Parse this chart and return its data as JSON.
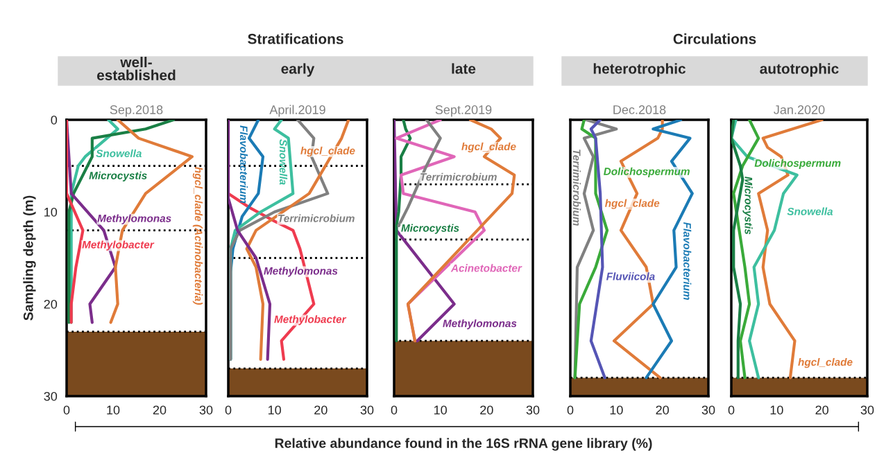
{
  "chart_data": [
    {
      "type": "line",
      "title": "well-\nestablished",
      "subtitle": "Sep.2018",
      "ylabel": "Sampling depth (m)",
      "annotations": [
        "Stratifications"
      ],
      "xlim": [
        0,
        30
      ],
      "xticks": [
        0,
        10,
        20,
        30
      ],
      "ylim": [
        30,
        0
      ],
      "yticks": [
        0,
        10,
        20,
        30
      ],
      "grid": false,
      "legend": false,
      "line_style": "solid",
      "marker": "none",
      "series": [
        {
          "name": "Snowella",
          "color": "#3dbf9f",
          "x": [
            9,
            11,
            4,
            2.5,
            1,
            1,
            1,
            1
          ],
          "values": [
            0,
            1,
            4,
            5,
            8,
            12,
            20,
            22
          ]
        },
        {
          "name": "Microcystis",
          "color": "#1a7f45",
          "x": [
            23,
            17,
            5.5,
            5.5,
            1.5,
            0.5,
            0.5
          ],
          "values": [
            0,
            1,
            2,
            4,
            8,
            10,
            22
          ]
        },
        {
          "name": "Methylomonas",
          "color": "#7b2d8b",
          "x": [
            0,
            1,
            8,
            10.5,
            5,
            5.5
          ],
          "values": [
            0,
            8,
            12,
            16,
            20,
            22
          ]
        },
        {
          "name": "Methylobacter",
          "color": "#ef3b4f",
          "x": [
            0,
            0,
            3.5,
            2,
            1,
            1
          ],
          "values": [
            0,
            8,
            12,
            16,
            20,
            22
          ]
        },
        {
          "name": "hgcl_clade (Actinobacteria)",
          "color": "#e07b39",
          "x": [
            11,
            15.5,
            27,
            17,
            12,
            10.5,
            11,
            9.5
          ],
          "values": [
            0,
            2,
            4,
            8,
            12,
            16,
            20,
            22
          ]
        }
      ],
      "ref_lines": [
        {
          "axis": "y",
          "value": 5,
          "line_style": "dotted"
        },
        {
          "axis": "y",
          "value": 12,
          "line_style": "dotted"
        },
        {
          "axis": "y",
          "value": 23,
          "line_style": "dotted"
        }
      ],
      "bands": [
        {
          "axis": "y",
          "from": 23,
          "to": 30,
          "color": "#7a4a1e"
        }
      ]
    },
    {
      "type": "line",
      "title": "early",
      "subtitle": "April.2019",
      "xlim": [
        0,
        30
      ],
      "xticks": [
        0,
        10,
        20,
        30
      ],
      "ylim": [
        30,
        0
      ],
      "yticks": [
        0,
        10,
        20,
        30
      ],
      "tick_labels": "x",
      "grid": false,
      "legend": false,
      "line_style": "solid",
      "marker": "none",
      "series": [
        {
          "name": "Methylobacter",
          "color": "#ef3b4f",
          "x": [
            0,
            0,
            4.5,
            10,
            14,
            15.5,
            18.5,
            11.5,
            12
          ],
          "values": [
            0,
            8,
            9.5,
            11,
            12,
            14,
            20,
            24,
            26
          ]
        },
        {
          "name": "Flavobacterium",
          "color": "#1b7bb5",
          "x": [
            6.5,
            4.5,
            7.5,
            6.5,
            3,
            1,
            0.5,
            0.5
          ],
          "values": [
            0,
            2,
            4,
            8,
            10.5,
            14,
            16.5,
            26
          ]
        },
        {
          "name": "Snowella",
          "color": "#3dbf9f",
          "x": [
            11.5,
            10,
            13,
            14,
            7,
            1.5,
            0.5,
            0.5
          ],
          "values": [
            0,
            1,
            2,
            8,
            10,
            12,
            14,
            26
          ]
        },
        {
          "name": "Terrimicrobium",
          "color": "#808080",
          "x": [
            15,
            18.5,
            18,
            21.5,
            10,
            2.5,
            0.5,
            0.5
          ],
          "values": [
            0,
            2,
            4,
            8,
            10,
            12,
            14,
            26
          ]
        },
        {
          "name": "hgcl_clade",
          "color": "#e07b39",
          "x": [
            26,
            24.5,
            17.5,
            6,
            4,
            6,
            7.5,
            7
          ],
          "values": [
            0,
            2,
            8,
            12,
            14,
            16,
            20,
            26
          ]
        },
        {
          "name": "Methylomonas",
          "color": "#7b2d8b",
          "x": [
            0,
            0,
            2,
            6,
            9,
            8.5
          ],
          "values": [
            0,
            8.5,
            12,
            15,
            20,
            26
          ]
        }
      ],
      "ref_lines": [
        {
          "axis": "y",
          "value": 5,
          "line_style": "dotted"
        },
        {
          "axis": "y",
          "value": 15,
          "line_style": "dotted"
        },
        {
          "axis": "y",
          "value": 27,
          "line_style": "dotted"
        }
      ],
      "bands": [
        {
          "axis": "y",
          "from": 27,
          "to": 30,
          "color": "#7a4a1e"
        }
      ]
    },
    {
      "type": "line",
      "title": "late",
      "subtitle": "Sept.2019",
      "xlabel": "Relative abundance found in the 16S rRNA gene library (%)",
      "xlim": [
        0,
        30
      ],
      "xticks": [
        0,
        10,
        20,
        30
      ],
      "ylim": [
        30,
        0
      ],
      "yticks": [
        0,
        10,
        20,
        30
      ],
      "tick_labels": "x",
      "grid": false,
      "legend": false,
      "line_style": "solid",
      "marker": "none",
      "series": [
        {
          "name": "Methylomonas",
          "color": "#7b2d8b",
          "x": [
            0,
            0.5,
            13,
            5
          ],
          "values": [
            0,
            12,
            20,
            24
          ]
        },
        {
          "name": "Microcystis",
          "color": "#1a7f45",
          "x": [
            2,
            2.5,
            3.5,
            1.5,
            1.5,
            1,
            0.5,
            0.5
          ],
          "values": [
            0,
            1,
            2,
            4,
            6,
            10,
            11.5,
            24
          ]
        },
        {
          "name": "Acinetobacter",
          "color": "#e066b8",
          "x": [
            10,
            0.5,
            13,
            1.5,
            2,
            17.5,
            19.5,
            3,
            4.5
          ],
          "values": [
            0,
            2,
            4,
            6,
            8,
            10,
            12,
            20,
            24
          ]
        },
        {
          "name": "Terrimicrobium",
          "color": "#808080",
          "x": [
            7,
            10,
            7,
            3,
            1
          ],
          "values": [
            0,
            2,
            5,
            9.5,
            11.5
          ]
        },
        {
          "name": "hgcl_clade",
          "color": "#e07b39",
          "x": [
            16.5,
            21,
            23,
            19.5,
            26,
            25.5,
            3,
            4.5
          ],
          "values": [
            0,
            1,
            2,
            4,
            6,
            8,
            20,
            24
          ]
        }
      ],
      "ref_lines": [
        {
          "axis": "y",
          "value": 7,
          "line_style": "dotted"
        },
        {
          "axis": "y",
          "value": 13,
          "line_style": "dotted"
        },
        {
          "axis": "y",
          "value": 24,
          "line_style": "dotted"
        }
      ],
      "bands": [
        {
          "axis": "y",
          "from": 24,
          "to": 30,
          "color": "#7a4a1e"
        }
      ]
    },
    {
      "type": "line",
      "title": "heterotrophic",
      "subtitle": "Dec.2018",
      "annotations": [
        "Circulations"
      ],
      "xlim": [
        0,
        30
      ],
      "xticks": [
        0,
        10,
        20,
        30
      ],
      "ylim": [
        30,
        0
      ],
      "yticks": [
        0,
        10,
        20,
        30
      ],
      "tick_labels": "x",
      "grid": false,
      "legend": false,
      "line_style": "solid",
      "marker": "none",
      "series": [
        {
          "name": "Terrimicrobium",
          "color": "#808080",
          "x": [
            3.5,
            10,
            3,
            5,
            3,
            5,
            1.5,
            1
          ],
          "values": [
            0,
            1,
            2,
            4,
            8,
            12,
            16,
            28
          ]
        },
        {
          "name": "Dolichospermum",
          "color": "#3aaa3a",
          "x": [
            3,
            2.5,
            5.5,
            5.5,
            8,
            5.5,
            2,
            1
          ],
          "values": [
            0,
            1,
            2,
            8,
            12,
            16,
            20,
            28
          ]
        },
        {
          "name": "Fluviicola",
          "color": "#5555b5",
          "x": [
            6.5,
            4.5,
            5.5,
            6.5,
            7,
            4.5,
            7.5
          ],
          "values": [
            0,
            1,
            2,
            8,
            16,
            24,
            28
          ]
        },
        {
          "name": "hgcl_clade",
          "color": "#e07b39",
          "x": [
            20,
            20,
            19,
            11,
            14.5,
            11,
            16.5,
            18,
            9.5,
            19.5
          ],
          "values": [
            0,
            1,
            2,
            4.5,
            8,
            12,
            16,
            20,
            24,
            28
          ]
        },
        {
          "name": "Flavobacterium",
          "color": "#1b7bb5",
          "x": [
            24,
            18,
            26,
            22,
            26.5,
            22.5,
            23,
            18,
            22,
            16.5
          ],
          "values": [
            0,
            1,
            2,
            4.5,
            8,
            12,
            16,
            20,
            24,
            28
          ]
        }
      ],
      "ref_lines": [
        {
          "axis": "y",
          "value": 28,
          "line_style": "dotted"
        }
      ],
      "bands": [
        {
          "axis": "y",
          "from": 28,
          "to": 30,
          "color": "#7a4a1e"
        }
      ]
    },
    {
      "type": "line",
      "title": "autotrophic",
      "subtitle": "Jan.2020",
      "xlim": [
        0,
        30
      ],
      "xticks": [
        0,
        10,
        20,
        30
      ],
      "ylim": [
        30,
        0
      ],
      "yticks": [
        0,
        10,
        20,
        30
      ],
      "tick_labels": "x",
      "grid": false,
      "legend": false,
      "line_style": "solid",
      "marker": "none",
      "series": [
        {
          "name": "hgcl_clade",
          "color": "#e07b39",
          "x": [
            20,
            7,
            8,
            11,
            12.5,
            6,
            8,
            7,
            8.5,
            14,
            13
          ],
          "values": [
            0,
            2,
            3,
            4,
            6,
            8,
            12,
            16,
            20,
            24,
            28
          ]
        },
        {
          "name": "Snowella",
          "color": "#3dbf9f",
          "x": [
            1,
            0,
            3.5,
            14.5,
            11.5,
            9.5,
            5,
            6,
            4,
            6
          ],
          "values": [
            0,
            2,
            4,
            6,
            8,
            12,
            16,
            20,
            24,
            28
          ]
        },
        {
          "name": "Dolichospermum",
          "color": "#3aaa3a",
          "x": [
            4,
            6,
            2.5,
            0.5,
            3,
            4,
            2,
            3
          ],
          "values": [
            0,
            2,
            5,
            8,
            16,
            20,
            24,
            28
          ]
        },
        {
          "name": "Microcystis",
          "color": "#1a7f45",
          "x": [
            0.5,
            0,
            2,
            2.5,
            0.5,
            0.5,
            2,
            1.5,
            1.5
          ],
          "values": [
            0,
            2,
            5,
            6.5,
            12,
            16,
            20,
            24,
            28
          ]
        }
      ],
      "ref_lines": [
        {
          "axis": "y",
          "value": 28,
          "line_style": "dotted"
        }
      ],
      "bands": [
        {
          "axis": "y",
          "from": 28,
          "to": 30,
          "color": "#7a4a1e"
        }
      ]
    }
  ]
}
